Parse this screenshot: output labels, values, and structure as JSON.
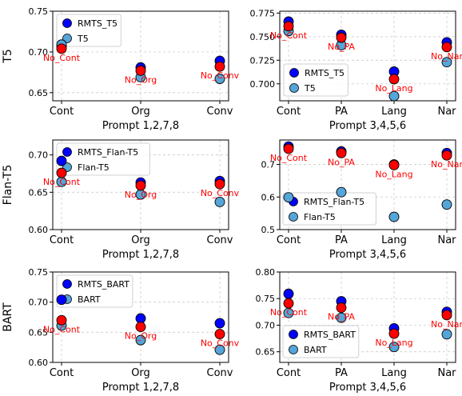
{
  "colors": {
    "main": "#0000ff",
    "base": "#55a5d9",
    "ablation": "#ff0000",
    "ablation_text": "#ff0000",
    "grid": "#cccccc"
  },
  "chart_data": [
    {
      "type": "scatter",
      "ylabel": "T5",
      "xlabel": "Prompt 1,2,7,8",
      "categories": [
        "Cont",
        "Org",
        "Conv"
      ],
      "ylim": [
        0.64,
        0.75
      ],
      "yticks": [
        0.65,
        0.7,
        0.75
      ],
      "grid": true,
      "legend": "top-left",
      "series": [
        {
          "name": "RMTS_T5",
          "color": "#0000ff",
          "values": [
            0.707,
            0.681,
            0.689
          ]
        },
        {
          "name": "T5",
          "color": "#55a5d9",
          "values": [
            0.709,
            0.669,
            0.667
          ]
        }
      ],
      "ablation": {
        "values": [
          0.704,
          0.677,
          0.682
        ],
        "labels": [
          "No_Cont",
          "No_Org",
          "No_Conv"
        ]
      }
    },
    {
      "type": "scatter",
      "ylabel": "",
      "xlabel": "Prompt 3,4,5,6",
      "categories": [
        "Cont",
        "PA",
        "Lang",
        "Nar"
      ],
      "ylim": [
        0.682,
        0.777
      ],
      "yticks": [
        0.7,
        0.725,
        0.75,
        0.775
      ],
      "grid": true,
      "legend": "bottom-left",
      "series": [
        {
          "name": "RMTS_T5",
          "color": "#0000ff",
          "values": [
            0.766,
            0.752,
            0.713,
            0.744
          ]
        },
        {
          "name": "T5",
          "color": "#55a5d9",
          "values": [
            0.756,
            0.741,
            0.687,
            0.723
          ]
        }
      ],
      "ablation": {
        "values": [
          0.761,
          0.749,
          0.705,
          0.739
        ],
        "labels": [
          "No_Cont",
          "No_PA",
          "No_Lang",
          "No_Nar"
        ]
      }
    },
    {
      "type": "scatter",
      "ylabel": "Flan-T5",
      "xlabel": "Prompt 1,2,7,8",
      "categories": [
        "Cont",
        "Org",
        "Conv"
      ],
      "ylim": [
        0.6,
        0.72
      ],
      "yticks": [
        0.6,
        0.65,
        0.7
      ],
      "grid": true,
      "legend": "top-left",
      "series": [
        {
          "name": "RMTS_Flan-T5",
          "color": "#0000ff",
          "values": [
            0.692,
            0.663,
            0.665
          ]
        },
        {
          "name": "Flan-T5",
          "color": "#55a5d9",
          "values": [
            0.664,
            0.647,
            0.637
          ]
        }
      ],
      "ablation": {
        "values": [
          0.676,
          0.659,
          0.661
        ],
        "labels": [
          "No_Cont",
          "No_Org",
          "No_Conv"
        ]
      }
    },
    {
      "type": "scatter",
      "ylabel": "",
      "xlabel": "Prompt 3,4,5,6",
      "categories": [
        "Cont",
        "PA",
        "Lang",
        "Nar"
      ],
      "ylim": [
        0.5,
        0.775
      ],
      "yticks": [
        0.5,
        0.6,
        0.7
      ],
      "grid": true,
      "legend": "bottom-right",
      "series": [
        {
          "name": "RMTS_Flan-T5",
          "color": "#0000ff",
          "values": [
            0.755,
            0.74,
            0.7,
            0.735
          ]
        },
        {
          "name": "Flan-T5",
          "color": "#55a5d9",
          "values": [
            0.599,
            0.615,
            0.539,
            0.577
          ]
        }
      ],
      "ablation": {
        "values": [
          0.748,
          0.735,
          0.698,
          0.728
        ],
        "labels": [
          "No_Cont",
          "No_PA",
          "No_Lang",
          "No_Nar"
        ]
      }
    },
    {
      "type": "scatter",
      "ylabel": "BART",
      "xlabel": "Prompt 1,2,7,8",
      "categories": [
        "Cont",
        "Org",
        "Conv"
      ],
      "ylim": [
        0.6,
        0.75
      ],
      "yticks": [
        0.6,
        0.65,
        0.7,
        0.75
      ],
      "grid": true,
      "legend": "top-left",
      "series": [
        {
          "name": "RMTS_BART",
          "color": "#0000ff",
          "values": [
            0.704,
            0.673,
            0.665
          ]
        },
        {
          "name": "BART",
          "color": "#55a5d9",
          "values": [
            0.661,
            0.637,
            0.621
          ]
        }
      ],
      "ablation": {
        "values": [
          0.67,
          0.659,
          0.647
        ],
        "labels": [
          "No_Cont",
          "No_Org",
          "No_Conv"
        ]
      }
    },
    {
      "type": "scatter",
      "ylabel": "",
      "xlabel": "Prompt 3,4,5,6",
      "categories": [
        "Cont",
        "PA",
        "Lang",
        "Nar"
      ],
      "ylim": [
        0.63,
        0.8
      ],
      "yticks": [
        0.65,
        0.7,
        0.75,
        0.8
      ],
      "grid": true,
      "legend": "bottom-right",
      "series": [
        {
          "name": "RMTS_BART",
          "color": "#0000ff",
          "values": [
            0.759,
            0.745,
            0.694,
            0.725
          ]
        },
        {
          "name": "BART",
          "color": "#55a5d9",
          "values": [
            0.723,
            0.714,
            0.659,
            0.683
          ]
        }
      ],
      "ablation": {
        "values": [
          0.741,
          0.733,
          0.684,
          0.719
        ],
        "labels": [
          "No_Cont",
          "No_PA",
          "No_Lang",
          "No_Nar"
        ]
      }
    }
  ]
}
